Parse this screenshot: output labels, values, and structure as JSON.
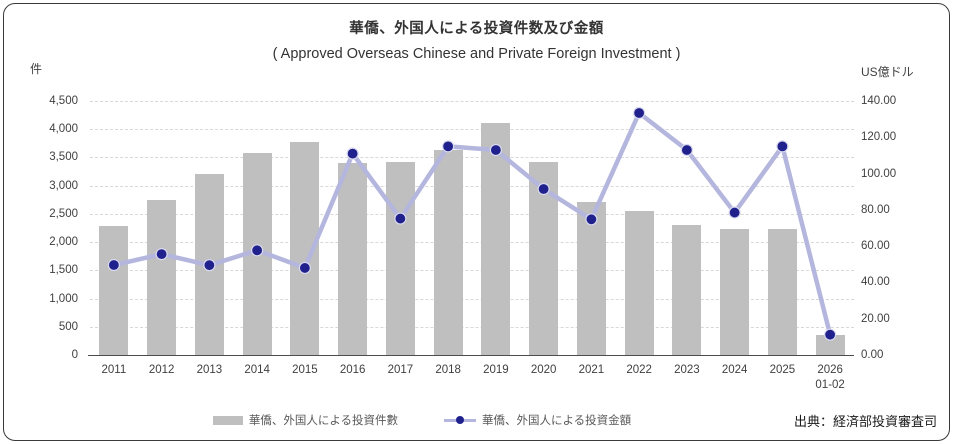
{
  "header": {
    "title": "華僑、外国人による投資件数及び金額",
    "subtitle": "( Approved Overseas Chinese and Private Foreign Investment )"
  },
  "left_axis": {
    "unit": "件",
    "min": 0,
    "max": 4500,
    "step": 500,
    "tick_labels": [
      "0",
      "500",
      "1,000",
      "1,500",
      "2,000",
      "2,500",
      "3,000",
      "3,500",
      "4,000",
      "4,500"
    ]
  },
  "right_axis": {
    "unit": "US億ドル",
    "min": 0,
    "max": 140,
    "step": 20,
    "tick_labels": [
      "0.00",
      "20.00",
      "40.00",
      "60.00",
      "80.00",
      "100.00",
      "120.00",
      "140.00"
    ]
  },
  "legend": [
    {
      "type": "bar",
      "label": "華僑、外国人による投資件數"
    },
    {
      "type": "line",
      "label": "華僑、外国人による投資金額"
    }
  ],
  "source": "出典：経済部投資審査司",
  "colors": {
    "bar": "#bfbfbf",
    "line": "#b4b6de",
    "point": "#20218c",
    "gridline": "#d8d8d8",
    "axis_text": "#404040"
  },
  "chart_data": {
    "type": "bar",
    "subtype": "combo-bar-line-dual-axis",
    "title": "華僑、外国人による投資件数及び金額",
    "subtitle": "( Approved Overseas Chinese and Private Foreign Investment )",
    "categories": [
      "2011",
      "2012",
      "2013",
      "2014",
      "2015",
      "2016",
      "2017",
      "2018",
      "2019",
      "2020",
      "2021",
      "2022",
      "2023",
      "2024",
      "2025",
      "2026 01-02"
    ],
    "series": [
      {
        "name": "華僑、外国人による投資件數",
        "type": "bar",
        "axis": "left",
        "unit": "件",
        "values": [
          2280,
          2740,
          3200,
          3580,
          3780,
          3410,
          3420,
          3640,
          4110,
          3420,
          2710,
          2560,
          2300,
          2230,
          2230,
          360
        ]
      },
      {
        "name": "華僑、外国人による投資金額",
        "type": "line",
        "axis": "right",
        "unit": "US億ドル",
        "values": [
          49.6,
          55.6,
          49.5,
          57.7,
          48.0,
          111.0,
          75.2,
          115.0,
          113.0,
          91.5,
          74.8,
          133.4,
          113.0,
          78.5,
          115.0,
          11.2
        ]
      }
    ],
    "left_ylim": [
      0,
      4500
    ],
    "right_ylim": [
      0,
      140
    ],
    "grid": "horizontal-dashed",
    "legend_position": "bottom-center"
  }
}
